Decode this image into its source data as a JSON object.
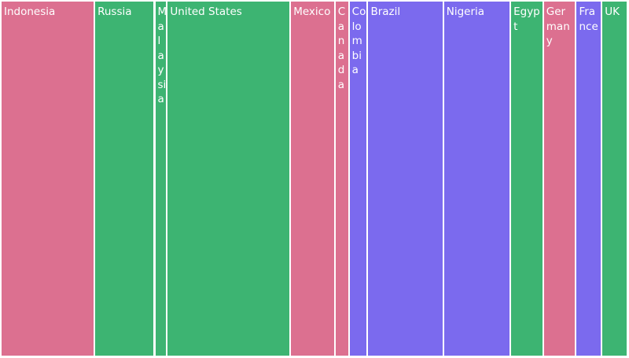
{
  "chart_data": {
    "type": "treemap",
    "categories": [
      "Indonesia",
      "Russia",
      "Malaysia",
      "United States",
      "Mexico",
      "Canada",
      "Colombia",
      "Brazil",
      "Nigeria",
      "Egypt",
      "Germany",
      "France",
      "UK"
    ],
    "values": [
      118,
      75,
      14,
      156,
      55,
      16,
      22,
      95,
      84,
      40,
      40,
      31,
      31
    ],
    "colors": [
      "#dc7090",
      "#3db472",
      "#3db472",
      "#3db472",
      "#dc7090",
      "#dc7090",
      "#7b6aee",
      "#7b6aee",
      "#7b6aee",
      "#3db472",
      "#dc7090",
      "#7b6aee",
      "#3db472"
    ]
  }
}
